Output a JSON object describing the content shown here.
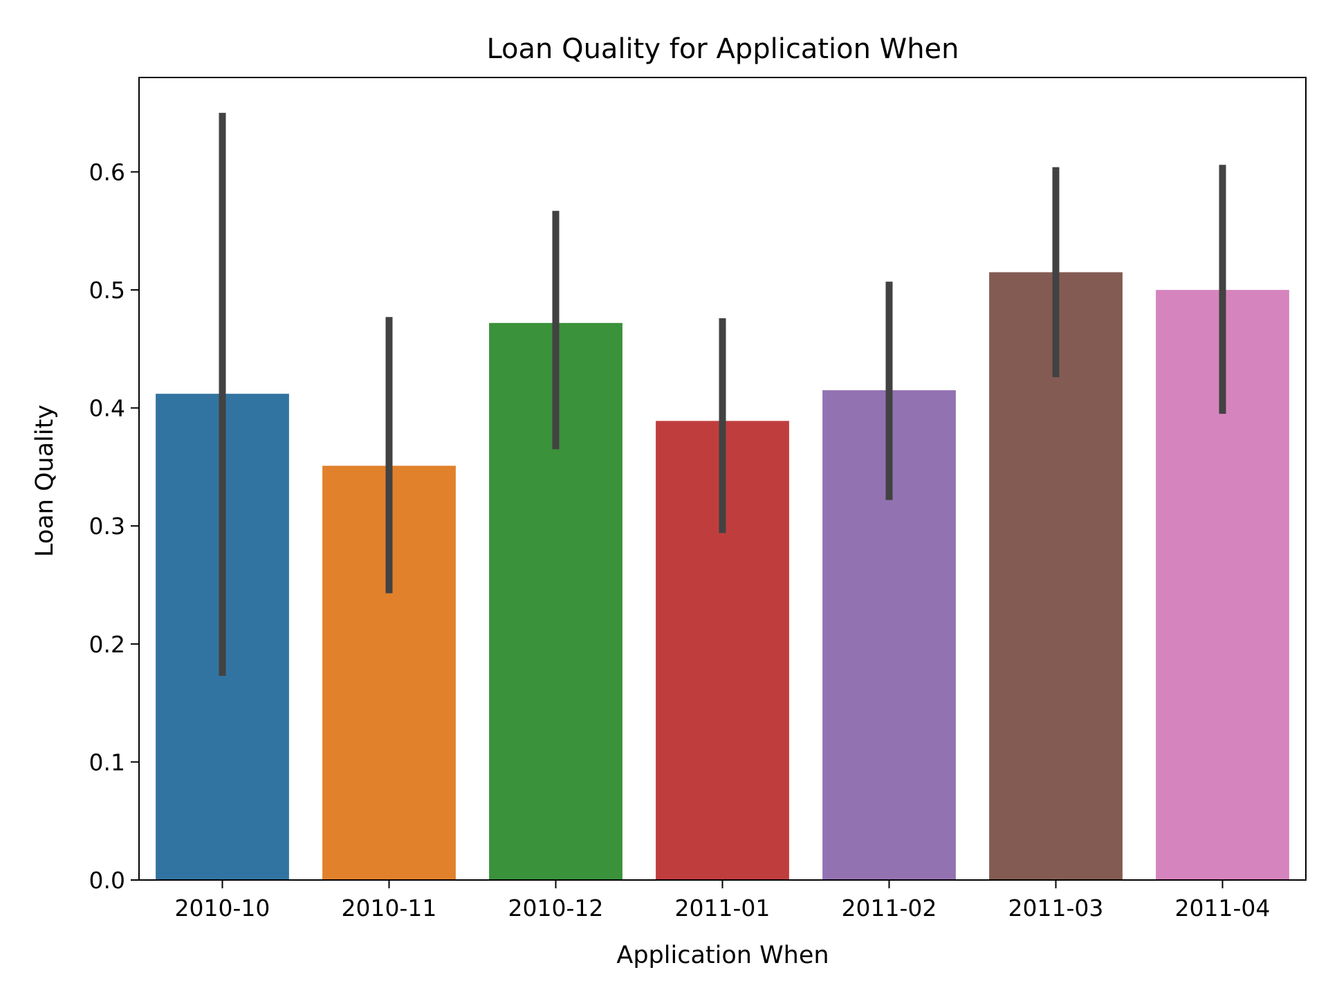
{
  "chart_data": {
    "type": "bar",
    "title": "Loan Quality for Application When",
    "xlabel": "Application When",
    "ylabel": "Loan Quality",
    "categories": [
      "2010-10",
      "2010-11",
      "2010-12",
      "2011-01",
      "2011-02",
      "2011-03",
      "2011-04"
    ],
    "values": [
      0.412,
      0.351,
      0.472,
      0.389,
      0.415,
      0.515,
      0.5
    ],
    "error_bars": [
      [
        0.173,
        0.65
      ],
      [
        0.243,
        0.477
      ],
      [
        0.365,
        0.567
      ],
      [
        0.294,
        0.476
      ],
      [
        0.322,
        0.507
      ],
      [
        0.426,
        0.604
      ],
      [
        0.395,
        0.606
      ]
    ],
    "colors": [
      "#3274a1",
      "#e1812c",
      "#3a923a",
      "#c03d3e",
      "#9372b2",
      "#845b53",
      "#d684bd"
    ],
    "error_bar_color": "#424242",
    "ylim": [
      0,
      0.68
    ],
    "yticks": [
      0.0,
      0.1,
      0.2,
      0.3,
      0.4,
      0.5,
      0.6
    ],
    "ytick_labels": [
      "0.0",
      "0.1",
      "0.2",
      "0.3",
      "0.4",
      "0.5",
      "0.6"
    ],
    "grid": false,
    "legend": false
  }
}
